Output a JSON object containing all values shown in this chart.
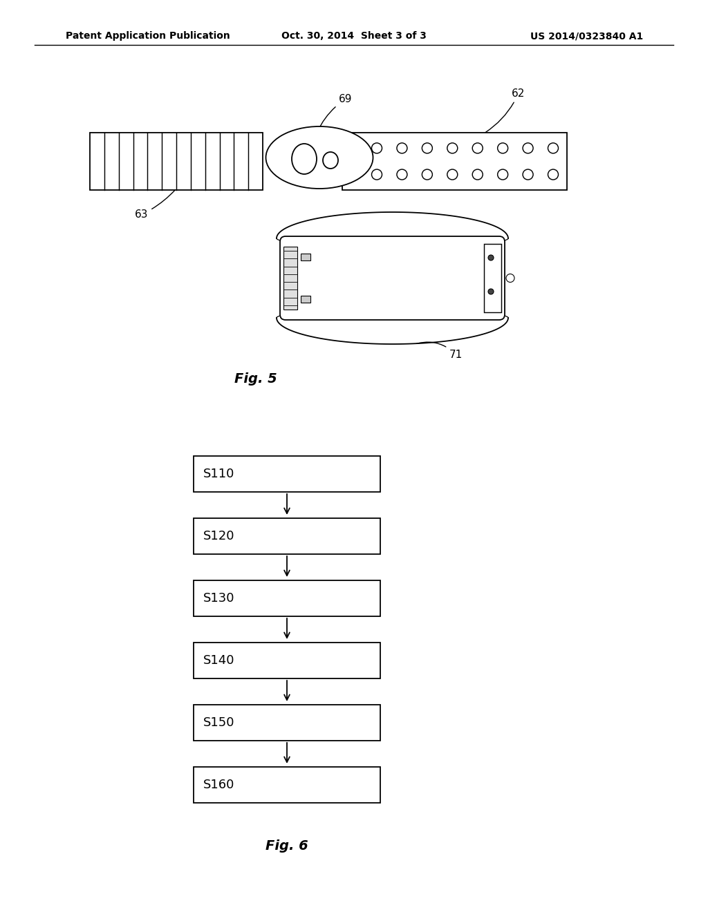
{
  "bg_color": "#ffffff",
  "header_left": "Patent Application Publication",
  "header_center": "Oct. 30, 2014  Sheet 3 of 3",
  "header_right": "US 2014/0323840 A1",
  "fig5_label": "Fig. 5",
  "fig6_label": "Fig. 6",
  "flowchart_steps": [
    "S110",
    "S120",
    "S130",
    "S140",
    "S150",
    "S160"
  ]
}
